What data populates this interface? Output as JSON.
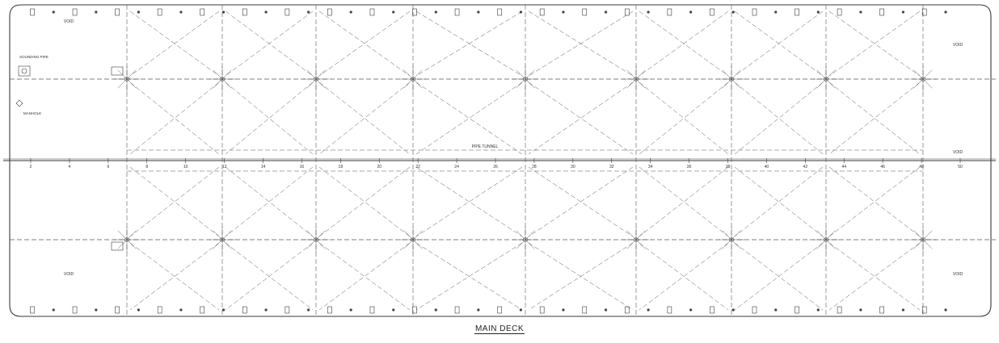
{
  "drawing_title": "MAIN DECK",
  "frame_numbers": [
    "2",
    "4",
    "6",
    "8",
    "10",
    "12",
    "14",
    "16",
    "18",
    "20",
    "22",
    "24",
    "26",
    "28",
    "30",
    "32",
    "34",
    "36",
    "38",
    "40",
    "42",
    "44",
    "46",
    "48",
    "50"
  ],
  "upper_row_a_labels": [
    "",
    "",
    "",
    "",
    "",
    "",
    "",
    "",
    ""
  ],
  "upper_row_b_labels": [
    "",
    "",
    "",
    "",
    "",
    "",
    "",
    "",
    ""
  ],
  "lower_row_a_labels": [
    "",
    "",
    "",
    "",
    "",
    "",
    "",
    "",
    ""
  ],
  "lower_row_b_labels": [
    "",
    "",
    "",
    "",
    "",
    "",
    "",
    "",
    ""
  ],
  "void_label": "VOID",
  "pipe_tunnel_label": "PIPE TUNNEL",
  "sounding_pipe_label": "SOUNDING PIPE",
  "manhole_label": "MANHOLE",
  "side_note": "",
  "colors": {
    "line": "#3a3a3a",
    "dash": "#555555",
    "background": "#ffffff"
  }
}
